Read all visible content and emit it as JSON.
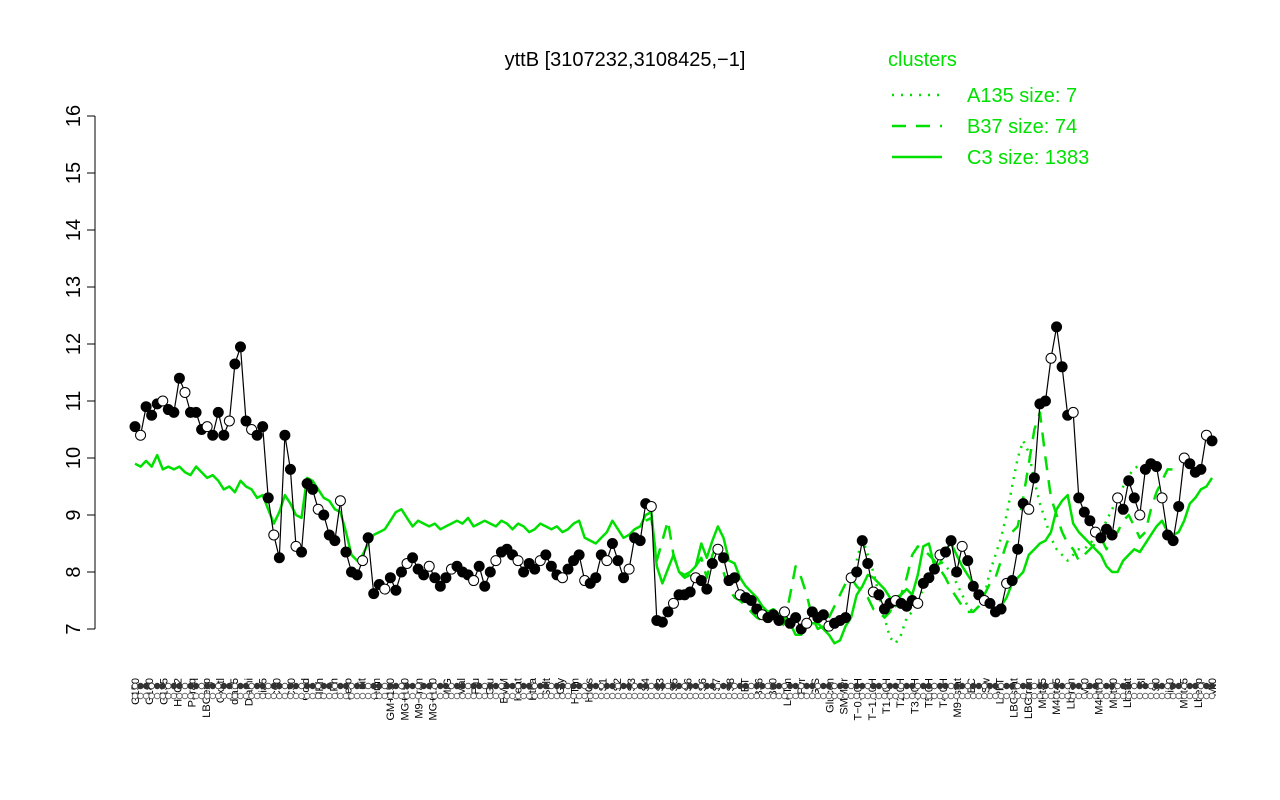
{
  "chart_data": {
    "type": "line",
    "title": "yttB [3107232,3108425,−1]",
    "xlabel": "",
    "ylabel": "",
    "ylim": [
      7,
      16
    ],
    "yticks": [
      7,
      8,
      9,
      10,
      11,
      12,
      13,
      14,
      15,
      16
    ],
    "legend": {
      "title": "clusters",
      "placement": "top-right",
      "entries": [
        {
          "label": "A135 size: 7",
          "style": "dotted"
        },
        {
          "label": "B37 size: 74",
          "style": "dashed"
        },
        {
          "label": "C3 size: 1383",
          "style": "solid"
        }
      ]
    },
    "xtick_labels": [
      "G150",
      "G180",
      "G135",
      "H2O2",
      "Paraq",
      "LBGexp",
      "Oxctl",
      "dia15",
      "Diami",
      "dia5",
      "C90",
      "C30",
      "Cold",
      "HPh",
      "LPh",
      "aero",
      "nit",
      "ferm",
      "GM+150",
      "MG+150",
      "M9−tran",
      "MG+120",
      "M/G",
      "Mal",
      "Fru",
      "Glu",
      "BMM",
      "Heat",
      "Etha",
      "Salt",
      "Gly",
      "HiTm",
      "HiOs",
      "S1",
      "S2",
      "S3",
      "S4",
      "S3",
      "S5",
      "S6",
      "S6",
      "S7",
      "S8",
      "BT",
      "B36",
      "B60",
      "LoTm",
      "Pyr",
      "G/S",
      "Glucon",
      "SMMPr",
      "T−0.40H",
      "T−1.10H",
      "T1.30H",
      "T2.0H",
      "T3.30H",
      "T5.0H",
      "T4.0H",
      "M9−stat",
      "BC",
      "Sw",
      "LPhT",
      "LBGstat",
      "LBGtran",
      "M0t45",
      "M40t45",
      "Lbtran",
      "Mt0",
      "M40t90",
      "M0t90",
      "Lbstat",
      "Bl",
      "S0",
      "dia0",
      "M0t45",
      "Lbexp",
      "Mt0"
    ],
    "series": [
      {
        "name": "",
        "style": "points",
        "values": [
          10.55,
          10.4,
          10.9,
          10.75,
          10.95,
          11.0,
          10.85,
          10.8,
          11.4,
          11.15,
          10.8,
          10.8,
          10.5,
          10.55,
          10.4,
          10.8,
          10.4,
          10.65,
          11.65,
          11.95,
          10.65,
          10.5,
          10.4,
          10.55,
          9.3,
          8.65,
          8.25,
          10.4,
          9.8,
          8.45,
          8.35,
          9.55,
          9.45,
          9.1,
          9.0,
          8.65,
          8.55,
          9.25,
          8.35,
          8.0,
          7.95,
          8.2,
          8.6,
          7.62,
          7.78,
          7.7,
          7.9,
          7.68,
          8.0,
          8.15,
          8.25,
          8.05,
          7.95,
          8.1,
          7.9,
          7.75,
          7.9,
          8.05,
          8.1,
          8.0,
          7.95,
          7.85,
          8.1,
          7.75,
          8.0,
          8.2,
          8.35,
          8.4,
          8.3,
          8.2,
          8.0,
          8.15,
          8.05,
          8.2,
          8.3,
          8.1,
          7.95,
          7.9,
          8.05,
          8.2,
          8.3,
          7.85,
          7.8,
          7.9,
          8.3,
          8.2,
          8.5,
          8.2,
          7.9,
          8.05,
          8.6,
          8.55,
          9.2,
          9.15,
          7.15,
          7.12,
          7.3,
          7.45,
          7.6,
          7.6,
          7.65,
          7.9,
          7.85,
          7.7,
          8.15,
          8.4,
          8.25,
          7.85,
          7.9,
          7.6,
          7.55,
          7.5,
          7.35,
          7.25,
          7.2,
          7.25,
          7.15,
          7.3,
          7.1,
          7.2,
          7.0,
          7.1,
          7.3,
          7.2,
          7.25,
          7.05,
          7.1,
          7.15,
          7.2,
          7.9,
          8.0,
          8.55,
          8.15,
          7.65,
          7.6,
          7.35,
          7.45,
          7.5,
          7.45,
          7.4,
          7.5,
          7.45,
          7.8,
          7.9,
          8.05,
          8.3,
          8.35,
          8.55,
          8.0,
          8.45,
          8.2,
          7.75,
          7.6,
          7.5,
          7.45,
          7.3,
          7.35,
          7.8,
          7.85,
          8.4,
          9.2,
          9.1,
          9.65,
          10.95,
          11.0,
          11.75,
          12.3,
          11.6,
          10.75,
          10.8,
          9.3,
          9.05,
          8.9,
          8.7,
          8.6,
          8.75,
          8.65,
          9.3,
          9.1,
          9.6,
          9.3,
          9.0,
          9.8,
          9.9,
          9.85,
          9.3,
          8.65,
          8.55,
          9.15,
          10.0,
          9.9,
          9.75,
          9.8,
          10.4,
          10.3
        ]
      },
      {
        "name": "",
        "style": "solid",
        "values": [
          9.9,
          9.85,
          9.95,
          9.85,
          10.05,
          9.8,
          9.85,
          9.8,
          9.85,
          9.75,
          9.7,
          9.85,
          9.75,
          9.65,
          9.7,
          9.6,
          9.45,
          9.5,
          9.4,
          9.6,
          9.5,
          9.45,
          9.3,
          9.35,
          9.1,
          8.85,
          9.05,
          9.35,
          9.2,
          9.0,
          8.95,
          9.65,
          9.6,
          9.45,
          9.3,
          9.25,
          9.1,
          9.05,
          8.7,
          8.3,
          8.2,
          8.3,
          8.5,
          8.65,
          8.7,
          8.75,
          8.9,
          9.05,
          9.1,
          8.95,
          8.8,
          8.9,
          8.85,
          8.8,
          8.85,
          8.75,
          8.8,
          8.85,
          8.9,
          8.85,
          8.95,
          8.8,
          8.85,
          8.9,
          8.85,
          8.8,
          8.9,
          8.85,
          8.75,
          8.85,
          8.8,
          8.7,
          8.75,
          8.85,
          8.8,
          8.75,
          8.8,
          8.7,
          8.75,
          8.85,
          8.9,
          8.6,
          8.55,
          8.5,
          8.6,
          8.7,
          8.9,
          8.75,
          8.6,
          8.65,
          8.75,
          8.8,
          9.0,
          9.05,
          8.1,
          7.8,
          8.05,
          8.3,
          8.0,
          7.95,
          8.0,
          8.1,
          8.5,
          8.25,
          8.55,
          8.8,
          8.6,
          8.2,
          8.15,
          7.9,
          7.75,
          7.65,
          7.55,
          7.4,
          7.3,
          7.35,
          7.25,
          7.2,
          7.1,
          6.9,
          6.9,
          7.05,
          7.1,
          7.1,
          7.0,
          6.9,
          6.75,
          6.8,
          7.05,
          7.2,
          7.6,
          7.75,
          7.95,
          7.9,
          7.8,
          7.7,
          7.55,
          7.4,
          7.6,
          7.7,
          7.6,
          7.95,
          8.45,
          8.5,
          8.1,
          8.15,
          8.4,
          8.5,
          8.3,
          8.1,
          7.95,
          7.8,
          7.6,
          7.5,
          7.45,
          7.35,
          7.4,
          7.55,
          7.8,
          7.9,
          8.0,
          8.3,
          8.4,
          8.5,
          8.55,
          8.7,
          9.1,
          9.25,
          9.35,
          8.85,
          8.7,
          8.6,
          8.5,
          8.4,
          8.3,
          8.1,
          8.0,
          8.0,
          8.2,
          8.3,
          8.4,
          8.35,
          8.5,
          8.65,
          8.8,
          8.9,
          8.7,
          8.65,
          8.7,
          8.9,
          9.2,
          9.3,
          9.45,
          9.5,
          9.65
        ]
      },
      {
        "name": "",
        "style": "dashed",
        "values": [
          null,
          null,
          null,
          null,
          null,
          null,
          null,
          null,
          null,
          null,
          null,
          null,
          null,
          null,
          null,
          null,
          null,
          null,
          null,
          null,
          null,
          null,
          null,
          null,
          null,
          null,
          null,
          null,
          null,
          null,
          null,
          null,
          null,
          null,
          null,
          null,
          null,
          null,
          null,
          null,
          null,
          null,
          null,
          null,
          null,
          null,
          null,
          null,
          null,
          null,
          null,
          null,
          null,
          null,
          null,
          null,
          null,
          null,
          null,
          null,
          null,
          null,
          null,
          null,
          null,
          null,
          null,
          null,
          null,
          null,
          null,
          null,
          null,
          null,
          null,
          null,
          null,
          null,
          null,
          null,
          null,
          null,
          null,
          null,
          null,
          null,
          null,
          null,
          null,
          null,
          null,
          null,
          8.9,
          8.95,
          8.2,
          8.55,
          8.9,
          8.3,
          8.0,
          7.9,
          7.95,
          8.1,
          8.25,
          7.9,
          8.3,
          8.5,
          8.0,
          7.7,
          7.55,
          7.5,
          7.4,
          7.3,
          7.2,
          7.15,
          7.1,
          7.2,
          7.0,
          7.1,
          7.6,
          8.1,
          7.9,
          7.6,
          7.2,
          7.0,
          7.05,
          7.2,
          7.4,
          7.6,
          7.8,
          7.9,
          7.75,
          7.65,
          7.55,
          7.35,
          7.3,
          7.2,
          7.3,
          7.55,
          7.6,
          7.9,
          8.3,
          8.45,
          8.4,
          8.3,
          8.2,
          8.05,
          7.9,
          7.7,
          7.55,
          7.4,
          7.3,
          7.3,
          7.4,
          7.6,
          7.8,
          7.9,
          8.2,
          8.5,
          8.7,
          8.8,
          9.3,
          9.9,
          10.5,
          10.8,
          10.0,
          9.3,
          9.0,
          8.7,
          8.5,
          8.4,
          8.2,
          8.3,
          8.4,
          8.5,
          8.6,
          8.4,
          8.6,
          8.7,
          8.9,
          9.0,
          8.8,
          8.6,
          8.7,
          9.1,
          9.4,
          9.6,
          9.8,
          9.8,
          9.9
        ]
      },
      {
        "name": "",
        "style": "dotted",
        "values": [
          null,
          null,
          null,
          null,
          null,
          null,
          null,
          null,
          null,
          null,
          null,
          null,
          null,
          null,
          null,
          null,
          null,
          null,
          null,
          null,
          null,
          null,
          null,
          null,
          null,
          null,
          null,
          null,
          null,
          null,
          null,
          null,
          null,
          null,
          null,
          null,
          null,
          null,
          null,
          null,
          null,
          null,
          null,
          null,
          null,
          null,
          null,
          null,
          null,
          null,
          null,
          null,
          null,
          null,
          null,
          null,
          null,
          null,
          null,
          null,
          null,
          null,
          null,
          null,
          null,
          null,
          null,
          null,
          null,
          null,
          null,
          null,
          null,
          null,
          null,
          null,
          null,
          null,
          null,
          null,
          null,
          null,
          null,
          null,
          null,
          null,
          null,
          null,
          null,
          null,
          null,
          null,
          null,
          null,
          null,
          null,
          null,
          null,
          null,
          null,
          null,
          null,
          null,
          null,
          null,
          null,
          null,
          null,
          null,
          null,
          null,
          null,
          null,
          null,
          null,
          null,
          null,
          null,
          null,
          null,
          null,
          null,
          null,
          null,
          null,
          null,
          null,
          null,
          null,
          null,
          8.2,
          8.6,
          8.3,
          8.0,
          7.6,
          7.2,
          6.85,
          6.75,
          6.9,
          7.2,
          7.3,
          7.5,
          7.7,
          7.9,
          8.1,
          8.2,
          8.1,
          8.0,
          7.8,
          7.6,
          7.4,
          7.3,
          7.4,
          7.6,
          8.0,
          8.3,
          8.6,
          9.0,
          9.5,
          10.0,
          10.3,
          10.1,
          9.6,
          9.2,
          8.9,
          8.6,
          8.4,
          8.3,
          8.2,
          8.3,
          8.4,
          8.4,
          8.5,
          8.6,
          8.7,
          8.9,
          9.1,
          9.3,
          9.5,
          9.7,
          9.8,
          9.9
        ]
      }
    ]
  }
}
